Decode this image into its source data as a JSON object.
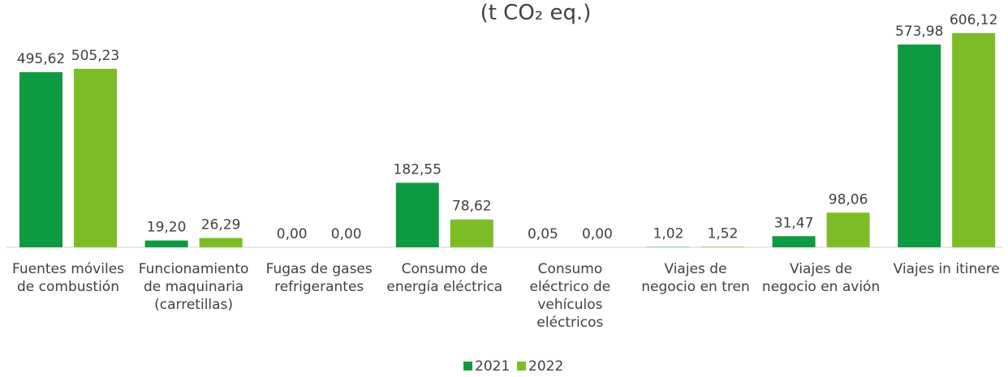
{
  "chart_data": {
    "type": "bar",
    "title": "(t CO₂ eq.)",
    "categories": [
      [
        "Fuentes móviles",
        "de combustión"
      ],
      [
        "Funcionamiento",
        "de maquinaria",
        "(carretillas)"
      ],
      [
        "Fugas de gases",
        "refrigerantes"
      ],
      [
        "Consumo de",
        "energía eléctrica"
      ],
      [
        "Consumo",
        "eléctrico de",
        "vehículos",
        "eléctricos"
      ],
      [
        "Viajes de",
        "negocio en tren"
      ],
      [
        "Viajes de",
        "negocio en avión"
      ],
      [
        "Viajes in itinere"
      ]
    ],
    "series": [
      {
        "name": "2021",
        "color": "#0e9a41",
        "values": [
          495.62,
          19.2,
          0,
          182.55,
          0.05,
          1.02,
          31.47,
          573.98
        ],
        "value_labels": [
          "495,62",
          "19,20",
          "0,00",
          "182,55",
          "0,05",
          "1,02",
          "31,47",
          "573,98"
        ]
      },
      {
        "name": "2022",
        "color": "#7cbd27",
        "values": [
          505.23,
          26.29,
          0,
          78.62,
          0,
          1.52,
          98.06,
          606.12
        ],
        "value_labels": [
          "505,23",
          "26,29",
          "0,00",
          "78,62",
          "0,00",
          "1,52",
          "98,06",
          "606,12"
        ]
      }
    ],
    "ylim": [
      0,
      700
    ],
    "legend": "bottom"
  }
}
